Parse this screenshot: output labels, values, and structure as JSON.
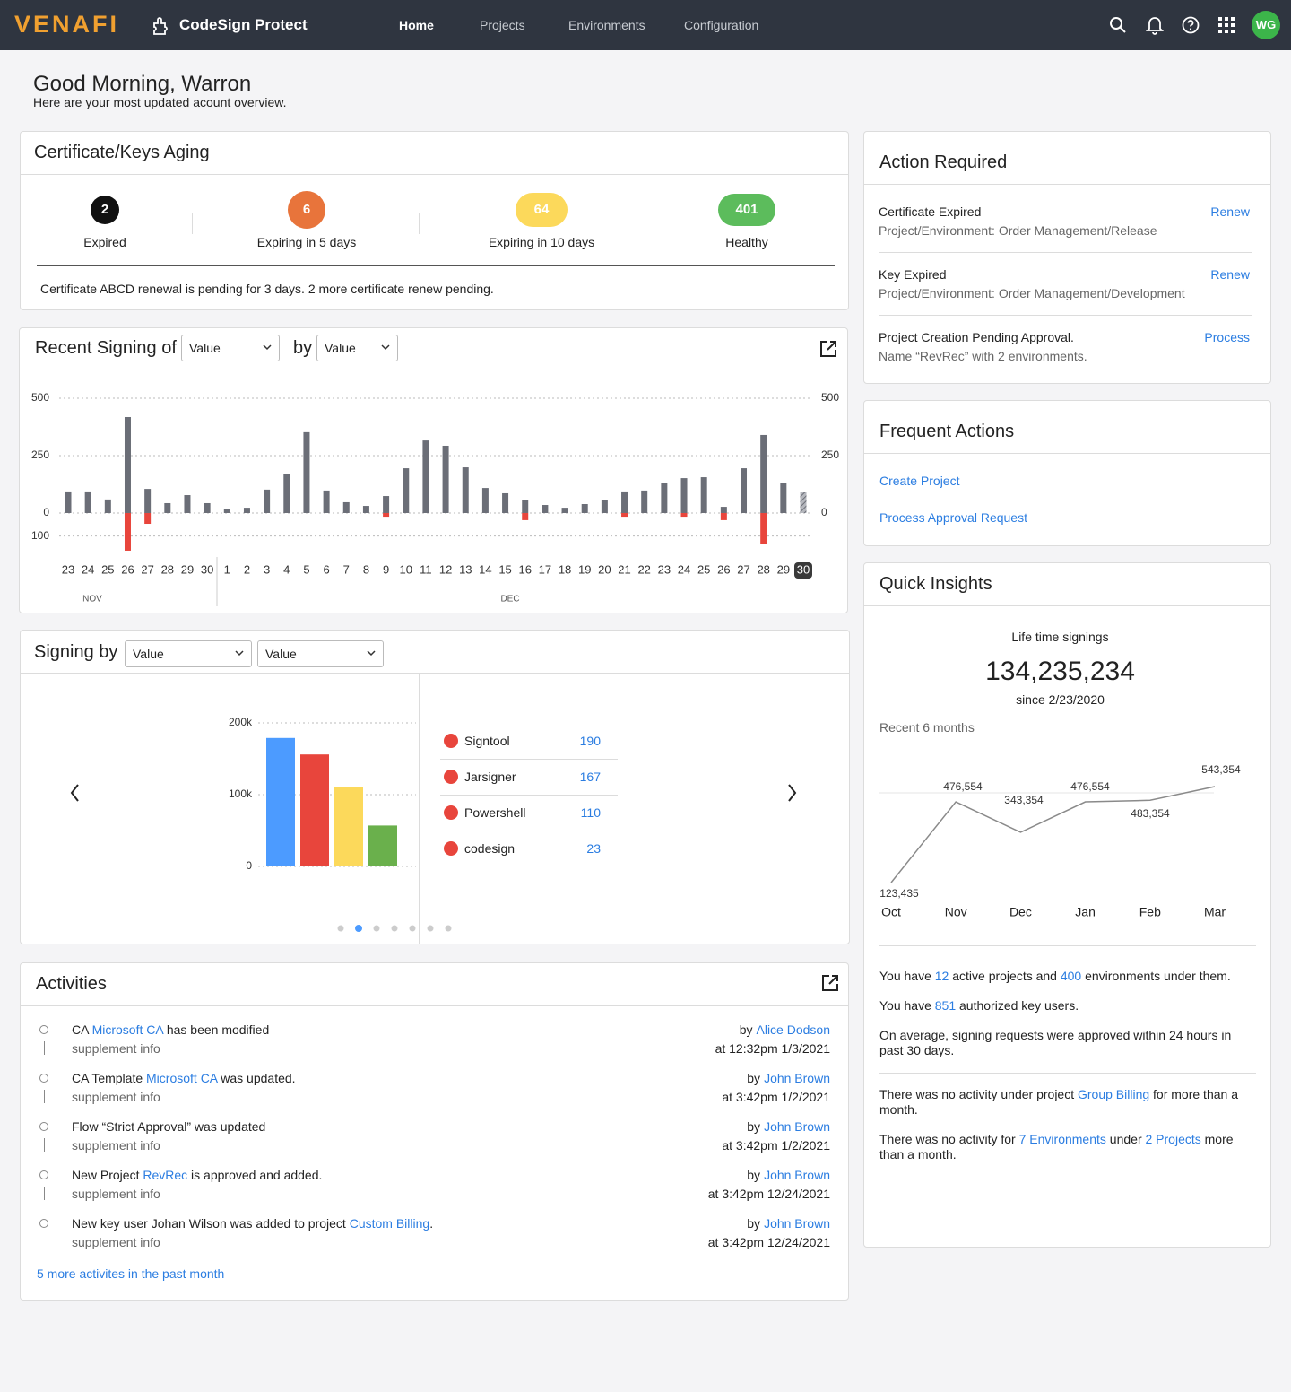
{
  "nav": {
    "brand": "VENAFI",
    "product": "CodeSign Protect",
    "links": [
      "Home",
      "Projects",
      "Environments",
      "Configuration"
    ],
    "avatar": "WG"
  },
  "greeting": {
    "title": "Good Morning, Warron",
    "subtitle": "Here are your most updated acount overview."
  },
  "aging": {
    "title": "Certificate/Keys Aging",
    "stats": [
      {
        "value": 2,
        "label": "Expired",
        "color": "#111111"
      },
      {
        "value": 6,
        "label": "Expiring in 5 days",
        "color": "#e8743b"
      },
      {
        "value": 64,
        "label": "Expiring in 10 days",
        "color": "#fcd95b"
      },
      {
        "value": 401,
        "label": "Healthy",
        "color": "#5cbc5c"
      }
    ],
    "note": "Certificate ABCD renewal is pending for 3 days.  2 more certificate renew pending."
  },
  "recent_signing": {
    "title": "Recent Signing of",
    "by": "by",
    "selects": [
      "Value",
      "Value"
    ],
    "chart": {
      "type": "bar",
      "categories": [
        "23",
        "24",
        "25",
        "26",
        "27",
        "28",
        "29",
        "30",
        "1",
        "2",
        "3",
        "4",
        "5",
        "6",
        "7",
        "8",
        "9",
        "10",
        "11",
        "12",
        "13",
        "14",
        "15",
        "16",
        "17",
        "18",
        "19",
        "20",
        "21",
        "22",
        "23",
        "24",
        "25",
        "26",
        "27",
        "28",
        "29",
        "30"
      ],
      "groups": [
        "NOV",
        "DEC"
      ],
      "series": [
        {
          "color": "#6b6e77",
          "values": [
            94,
            94,
            59,
            418,
            105,
            43,
            78,
            43,
            16,
            23,
            102,
            168,
            352,
            98,
            47,
            31,
            74,
            195,
            316,
            293,
            199,
            109,
            86,
            55,
            35,
            23,
            39,
            55,
            94,
            98,
            129,
            152,
            156,
            27,
            195,
            340,
            129,
            90
          ]
        },
        {
          "color": "#e8453c",
          "values": [
            null,
            null,
            null,
            -164,
            -47,
            null,
            null,
            null,
            null,
            null,
            null,
            null,
            null,
            null,
            null,
            null,
            -16,
            null,
            null,
            null,
            null,
            null,
            null,
            -31,
            null,
            null,
            null,
            null,
            -16,
            null,
            null,
            -16,
            null,
            -31,
            null,
            -133,
            null,
            null
          ]
        }
      ],
      "ylim": [
        -170,
        500
      ],
      "yticks": [
        {
          "value": -100,
          "label": "100"
        },
        0,
        250,
        500
      ],
      "y2lim": [
        -170,
        500
      ],
      "y2ticks": [
        0,
        250,
        500
      ],
      "grid": true
    }
  },
  "signing_by": {
    "title": "Signing by",
    "selects": [
      "Value",
      "Value"
    ],
    "chart": {
      "type": "bar",
      "categories": [
        "Signtool",
        "Jarsigner",
        "Powershell",
        "codesign"
      ],
      "values": [
        179000,
        156000,
        110000,
        57000
      ],
      "colors": [
        "#4c9bff",
        "#e8453c",
        "#fcd95b",
        "#6ab04c"
      ],
      "counts": [
        190,
        167,
        110,
        23
      ],
      "legend_color": "#e8453c",
      "ylim": [
        0,
        200000
      ],
      "yticks": [
        0,
        {
          "value": 100000,
          "label": "100k"
        },
        {
          "value": 200000,
          "label": "200k"
        }
      ],
      "grid": true
    }
  },
  "activities": {
    "title": "Activities",
    "by": "by",
    "items": [
      {
        "text": [
          {
            "text": "CA "
          },
          {
            "link": "Microsoft CA"
          },
          {
            "text": " has been modified"
          }
        ],
        "info": "supplement info",
        "user": "Alice Dodson",
        "time": "at 12:32pm 1/3/2021"
      },
      {
        "text": [
          {
            "text": "CA Template "
          },
          {
            "link": "Microsoft CA"
          },
          {
            "text": " was updated."
          }
        ],
        "info": "supplement info",
        "user": "John Brown",
        "time": "at 3:42pm 1/2/2021"
      },
      {
        "text": [
          {
            "text": "Flow “Strict Approval” was updated"
          }
        ],
        "info": "supplement info",
        "user": "John Brown",
        "time": "at 3:42pm 1/2/2021"
      },
      {
        "text": [
          {
            "text": "New Project "
          },
          {
            "link": "RevRec"
          },
          {
            "text": " is approved and added."
          }
        ],
        "info": "supplement info",
        "user": "John Brown",
        "time": "at 3:42pm 12/24/2021"
      },
      {
        "text": [
          {
            "text": "New key user  Johan Wilson was added to project "
          },
          {
            "link": "Custom Billing"
          },
          {
            "text": "."
          }
        ],
        "info": "supplement info",
        "user": "John Brown",
        "time": "at 3:42pm 12/24/2021"
      }
    ],
    "more": "5 more activites in the past month"
  },
  "action_required": {
    "title": "Action Required",
    "items": [
      {
        "title": "Certificate Expired",
        "detail": "Project/Environment: Order Management/Release",
        "action": "Renew"
      },
      {
        "title": "Key Expired",
        "detail": "Project/Environment: Order Management/Development",
        "action": "Renew"
      },
      {
        "title": "Project Creation Pending Approval.",
        "detail": "Name “RevRec” with 2 environments.",
        "action": "Process"
      }
    ]
  },
  "frequent_actions": {
    "title": "Frequent Actions",
    "links": [
      "Create Project",
      "Process Approval Request"
    ]
  },
  "quick_insights": {
    "title": "Quick Insights",
    "lifetime_label": "Life time signings",
    "total": "134,235,234",
    "since": "since 2/23/2020",
    "recent_label": "Recent 6 months",
    "chart": {
      "type": "line",
      "categories": [
        "Oct",
        "Nov",
        "Dec",
        "Jan",
        "Feb",
        "Mar"
      ],
      "values": [
        123435,
        476554,
        343354,
        476554,
        483354,
        543354
      ],
      "value_labels": [
        "123,435",
        "476,554",
        "343,354",
        "476,554",
        "483,354",
        "543,354"
      ],
      "color": "#8a8a8a"
    },
    "facts": [
      [
        {
          "text": "You have "
        },
        {
          "link": "12"
        },
        {
          "text": " active projects and "
        },
        {
          "link": "400"
        },
        {
          "text": " environments under them."
        }
      ],
      [
        {
          "text": "You have "
        },
        {
          "link": "851"
        },
        {
          "text": " authorized key users."
        }
      ],
      [
        {
          "text": "On average, signing requests were approved within 24 hours in past 30 days."
        }
      ]
    ],
    "notices": [
      [
        {
          "text": "There was no activity under project "
        },
        {
          "link": "Group Billing"
        },
        {
          "text": " for more than a month."
        }
      ],
      [
        {
          "text": "There was no activity for "
        },
        {
          "link": "7 Environments"
        },
        {
          "text": " under "
        },
        {
          "link": "2 Projects"
        },
        {
          "text": " more than a month."
        }
      ]
    ]
  }
}
